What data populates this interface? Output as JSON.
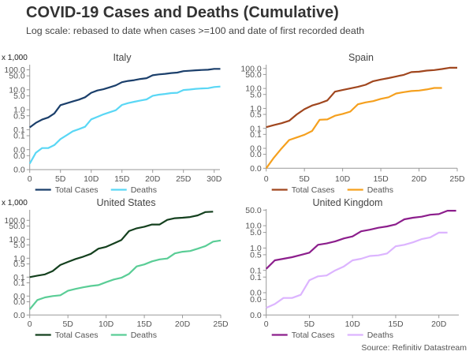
{
  "header": {
    "title": "COVID-19 Cases and Deaths (Cumulative)",
    "subtitle": "Log scale: rebased to date when cases >=100 and date of first recorded death"
  },
  "source": "Source: Refinitiv Datastream",
  "chart_data": [
    {
      "type": "line",
      "title": "Italy",
      "unit_label": "x 1,000",
      "yscale": "log",
      "yticks": [
        100,
        50,
        10,
        5,
        1,
        0.5,
        0.1,
        0.05,
        0.01,
        0.005,
        0.001
      ],
      "ytick_labels": [
        "100.0",
        "50.0",
        "10.0",
        "5.0",
        "1.0",
        "0.5",
        "0.1",
        "0.1",
        "0.0",
        "0.0",
        "0.0"
      ],
      "ylim": [
        0.001,
        130
      ],
      "xlim": [
        0,
        31
      ],
      "xticks": [
        0,
        5,
        10,
        15,
        20,
        25,
        30
      ],
      "xtick_labels": [
        "0",
        "5D",
        "10D",
        "15D",
        "20D",
        "25D",
        "30D"
      ],
      "grid": false,
      "legend": "bottom-left",
      "series": [
        {
          "name": "Total Cases",
          "color": "#1b3f6b",
          "values": [
            0.13,
            0.22,
            0.32,
            0.41,
            0.65,
            1.7,
            2.1,
            2.6,
            3.2,
            4.2,
            7.1,
            9.2,
            10.7,
            13.2,
            16.6,
            24.0,
            27.6,
            30.3,
            34.7,
            38.0,
            53.6,
            59.0,
            63.0,
            69.0,
            73.0,
            86.0,
            90.0,
            95.0,
            98.0,
            101.0,
            112.0,
            112.0
          ]
        },
        {
          "name": "Deaths",
          "color": "#5ad7f5",
          "values": [
            0.002,
            0.007,
            0.012,
            0.012,
            0.017,
            0.034,
            0.053,
            0.083,
            0.107,
            0.14,
            0.33,
            0.44,
            0.59,
            0.75,
            0.95,
            1.74,
            2.15,
            2.5,
            2.9,
            3.3,
            5.0,
            5.7,
            6.2,
            6.8,
            7.1,
            9.7,
            10.3,
            11.2,
            11.7,
            12.0,
            13.8,
            14.5
          ]
        }
      ]
    },
    {
      "type": "line",
      "title": "Spain",
      "unit_label": "x 1,000",
      "yscale": "log",
      "yticks": [
        100,
        50,
        10,
        5,
        1,
        0.5,
        0.1,
        0.05,
        0.01,
        0.005,
        0.001
      ],
      "ytick_labels": [
        "100.0",
        "50.0",
        "10.0",
        "5.0",
        "1.0",
        "0.5",
        "0.1",
        "0.1",
        "0.0",
        "0.0",
        "0.0"
      ],
      "ylim": [
        0.001,
        130
      ],
      "xlim": [
        0,
        25
      ],
      "xticks": [
        0,
        5,
        10,
        15,
        20,
        25
      ],
      "xtick_labels": [
        "0",
        "5D",
        "10D",
        "15D",
        "20D",
        "25D"
      ],
      "grid": false,
      "legend": "bottom-left",
      "series": [
        {
          "name": "Total Cases",
          "color": "#a0461e",
          "values": [
            0.115,
            0.145,
            0.18,
            0.24,
            0.5,
            0.91,
            1.4,
            1.8,
            2.5,
            6.9,
            8.3,
            10.0,
            12.0,
            15.2,
            23.0,
            28.0,
            33.0,
            40.0,
            48.0,
            66.0,
            69.0,
            78.0,
            83.0,
            94.0,
            109.0,
            109.0
          ]
        },
        {
          "name": "Deaths",
          "color": "#f5a01e",
          "values": [
            0.001,
            0.0034,
            0.0098,
            0.026,
            0.035,
            0.048,
            0.074,
            0.27,
            0.28,
            0.43,
            0.53,
            0.69,
            1.6,
            2.0,
            2.3,
            3.0,
            3.6,
            5.6,
            6.5,
            7.4,
            7.8,
            8.9,
            10.6,
            10.6
          ]
        }
      ]
    },
    {
      "type": "line",
      "title": "United States",
      "unit_label": "x 1,000",
      "yscale": "log",
      "yticks": [
        100,
        50,
        10,
        5,
        1,
        0.5,
        0.1,
        0.05,
        0.01,
        0.005,
        0.001
      ],
      "ytick_labels": [
        "100.0",
        "50.0",
        "10.0",
        "5.0",
        "1.0",
        "0.5",
        "0.1",
        "0.1",
        "0.0",
        "0.0",
        "0.0"
      ],
      "ylim": [
        0.001,
        350
      ],
      "xlim": [
        0,
        25
      ],
      "xticks": [
        0,
        5,
        10,
        15,
        20,
        25
      ],
      "xtick_labels": [
        "0",
        "5D",
        "10D",
        "15D",
        "20D",
        "25D"
      ],
      "grid": false,
      "legend": "bottom-left",
      "series": [
        {
          "name": "Total Cases",
          "color": "#14401e",
          "values": [
            0.1,
            0.12,
            0.14,
            0.21,
            0.44,
            0.64,
            0.91,
            1.2,
            1.7,
            3.2,
            4.0,
            6.0,
            9.2,
            27.0,
            38.0,
            46.0,
            60.0,
            60.0,
            106.0,
            129.0,
            137.0,
            150.0,
            183.0,
            275.0,
            287.0
          ]
        },
        {
          "name": "Deaths",
          "color": "#5acd96",
          "values": [
            0.002,
            0.0062,
            0.0085,
            0.01,
            0.011,
            0.019,
            0.024,
            0.029,
            0.034,
            0.038,
            0.054,
            0.075,
            0.093,
            0.15,
            0.37,
            0.47,
            0.68,
            0.87,
            0.96,
            1.8,
            2.2,
            2.4,
            3.2,
            4.4,
            7.5,
            8.7
          ]
        }
      ]
    },
    {
      "type": "line",
      "title": "United Kingdom",
      "unit_label": "x 1,000",
      "yscale": "log",
      "yticks": [
        50,
        10,
        5,
        1,
        0.5,
        0.1,
        0.05,
        0.01,
        0.005,
        0.001
      ],
      "ytick_labels": [
        "50.0",
        "10.0",
        "5.0",
        "1.0",
        "0.5",
        "0.1",
        "0.1",
        "0.0",
        "0.0",
        "0.0"
      ],
      "ylim": [
        0.001,
        55
      ],
      "xlim": [
        0,
        22
      ],
      "xticks": [
        0,
        5,
        10,
        15,
        20
      ],
      "xtick_labels": [
        "0",
        "5D",
        "10D",
        "15D",
        "20D"
      ],
      "grid": false,
      "legend": "bottom-left",
      "series": [
        {
          "name": "Total Cases",
          "color": "#8c1e8c",
          "values": [
            0.117,
            0.28,
            0.33,
            0.39,
            0.49,
            0.62,
            1.4,
            1.6,
            2.0,
            2.7,
            3.3,
            5.6,
            6.6,
            8.1,
            9.3,
            11.5,
            19.4,
            22.8,
            25.3,
            30.9,
            33.2,
            47.0,
            47.0
          ]
        },
        {
          "name": "Deaths",
          "color": "#dcb4ff",
          "values": [
            0.0021,
            0.0031,
            0.0058,
            0.0058,
            0.008,
            0.036,
            0.054,
            0.059,
            0.1,
            0.15,
            0.28,
            0.33,
            0.44,
            0.47,
            0.57,
            1.2,
            1.4,
            1.8,
            2.5,
            3.0,
            4.9,
            4.9
          ]
        }
      ]
    }
  ]
}
